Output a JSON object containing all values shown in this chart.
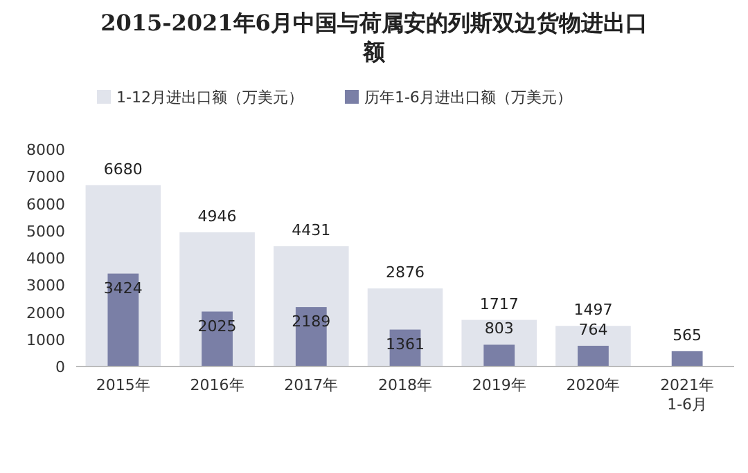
{
  "chart_data": {
    "type": "bar",
    "title": "2015-2021年6月中国与荷属安的列斯双边货物进出口额",
    "categories": [
      "2015年",
      "2016年",
      "2017年",
      "2018年",
      "2019年",
      "2020年",
      "2021年1-6月"
    ],
    "series": [
      {
        "name": "1-12月进出口额（万美元）",
        "color": "#e1e4ec",
        "values": [
          6680,
          4946,
          4431,
          2876,
          1717,
          1497,
          null
        ]
      },
      {
        "name": "历年1-6月进出口额（万美元）",
        "color": "#7a7fa6",
        "values": [
          3424,
          2025,
          2189,
          1361,
          803,
          764,
          565
        ]
      }
    ],
    "ylim": [
      0,
      8000
    ],
    "yticks": [
      0,
      1000,
      2000,
      3000,
      4000,
      5000,
      6000,
      7000,
      8000
    ],
    "data_labels": true,
    "legend": "top"
  }
}
